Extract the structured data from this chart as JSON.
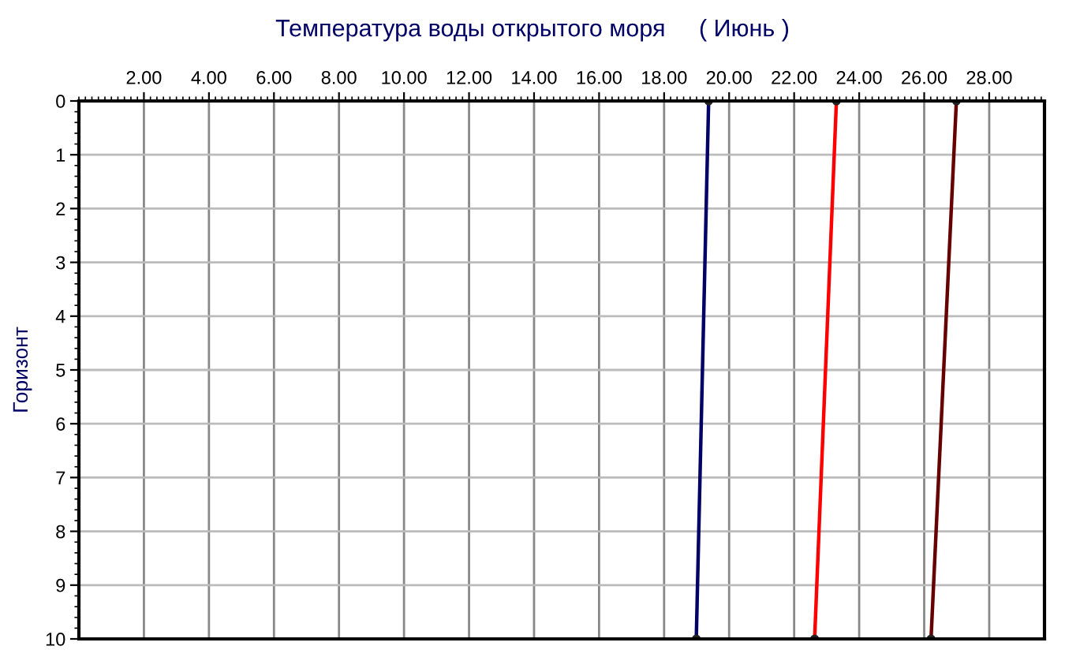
{
  "chart_data": {
    "type": "line",
    "title": "Температура воды открытого моря     ( Июнь )",
    "ylabel": "Горизонт",
    "series": [
      {
        "color": "#000066",
        "x": [
          19.37,
          18.99
        ],
        "values": [
          0,
          10
        ]
      },
      {
        "color": "#ff0000",
        "x": [
          23.3,
          22.63
        ],
        "values": [
          0,
          10
        ]
      },
      {
        "color": "#660000",
        "x": [
          26.99,
          26.21
        ],
        "values": [
          0,
          10
        ]
      }
    ],
    "xlim": [
      0,
      29.7
    ],
    "ylim": [
      10,
      0
    ],
    "xticks": [
      {
        "value": 2,
        "label": "2.00"
      },
      {
        "value": 4,
        "label": "4.00"
      },
      {
        "value": 6,
        "label": "6.00"
      },
      {
        "value": 8,
        "label": "8.00"
      },
      {
        "value": 10,
        "label": "10.00"
      },
      {
        "value": 12,
        "label": "12.00"
      },
      {
        "value": 14,
        "label": "14.00"
      },
      {
        "value": 16,
        "label": "16.00"
      },
      {
        "value": 18,
        "label": "18.00"
      },
      {
        "value": 20,
        "label": "20.00"
      },
      {
        "value": 22,
        "label": "22.00"
      },
      {
        "value": 24,
        "label": "24.00"
      },
      {
        "value": 26,
        "label": "26.00"
      },
      {
        "value": 28,
        "label": "28.00"
      }
    ],
    "yticks": [
      0,
      1,
      2,
      3,
      4,
      5,
      6,
      7,
      8,
      9,
      10
    ],
    "grid": true,
    "marker": "circle",
    "line_style": "solid"
  }
}
